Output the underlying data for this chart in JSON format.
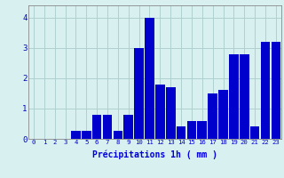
{
  "hours": [
    0,
    1,
    2,
    3,
    4,
    5,
    6,
    7,
    8,
    9,
    10,
    11,
    12,
    13,
    14,
    15,
    16,
    17,
    18,
    19,
    20,
    21,
    22,
    23
  ],
  "values": [
    0,
    0,
    0,
    0,
    0.25,
    0.25,
    0.8,
    0.8,
    0.25,
    0.8,
    3.0,
    4.0,
    1.8,
    1.7,
    0.4,
    0.6,
    0.6,
    1.5,
    1.6,
    2.8,
    2.8,
    0.4,
    3.2,
    3.2
  ],
  "bar_color": "#0000cc",
  "bg_color": "#d8f0f0",
  "grid_color": "#b0d0d0",
  "xlabel": "Précipitations 1h ( mm )",
  "xlabel_color": "#0000dd",
  "tick_color": "#0000cc",
  "ylim": [
    0,
    4.4
  ],
  "yticks": [
    0,
    1,
    2,
    3,
    4
  ],
  "spine_color": "#888888"
}
